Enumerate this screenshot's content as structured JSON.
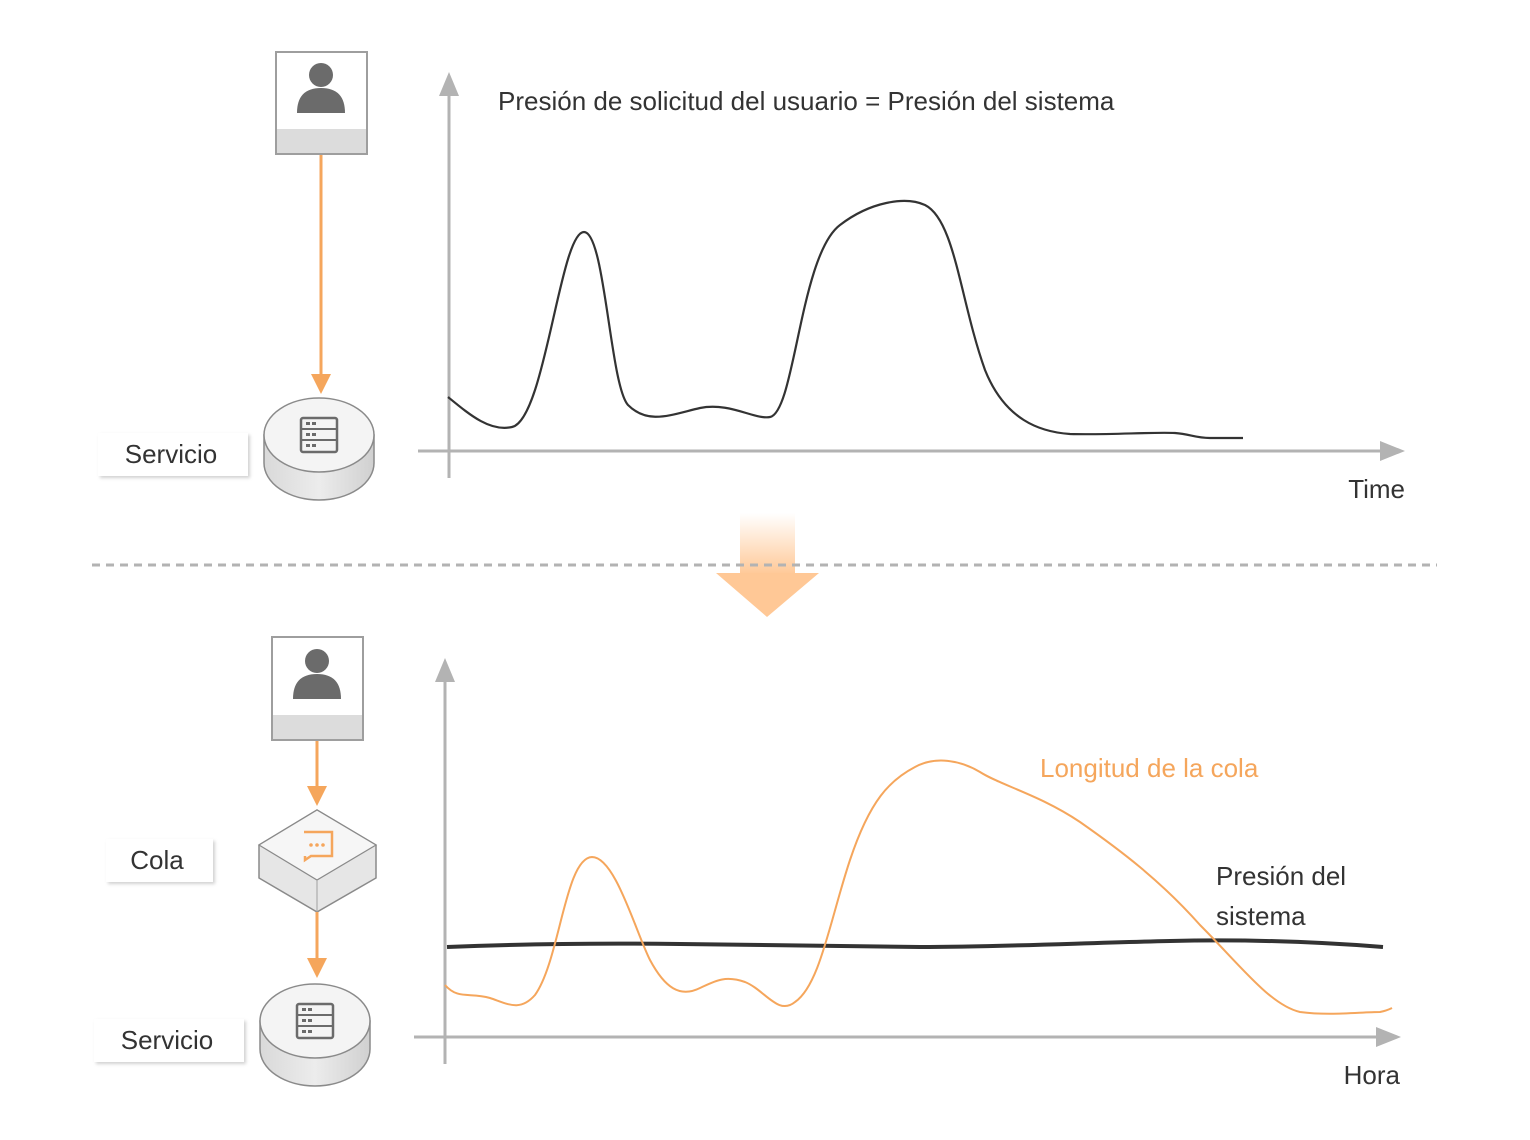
{
  "top": {
    "title": "Presión de solicitud del usuario = Presión del sistema",
    "x_axis_label": "Time",
    "service_label": "Servicio",
    "user_icon": "user-icon",
    "server_icon": "server-icon"
  },
  "bottom": {
    "x_axis_label": "Hora",
    "queue_label": "Cola",
    "service_label": "Servicio",
    "queue_series_label": "Longitud de la cola",
    "system_series_label_line1": "Presión del",
    "system_series_label_line2": "sistema",
    "user_icon": "user-icon",
    "queue_icon": "message-queue-icon",
    "server_icon": "server-icon"
  },
  "colors": {
    "orange": "#f5a65c",
    "dark_line": "#333333",
    "axis": "#b3b3b3",
    "icon_gray": "#6b6b6b",
    "transition_arrow": "#ffc896"
  }
}
